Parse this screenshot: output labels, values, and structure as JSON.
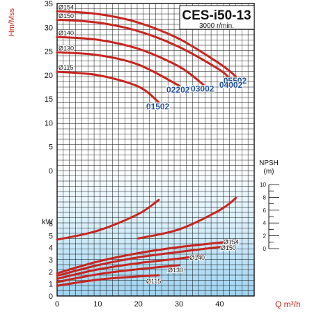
{
  "chart_data": {
    "type": "line",
    "title": "CES-i50-13",
    "subtitle": "3000 r/min.",
    "xlabel": "Q m³/h",
    "x_ticks": [
      0,
      10,
      20,
      30,
      40
    ],
    "head": {
      "ylabel": "Hm/Mss",
      "y_ticks": [
        35,
        30,
        25,
        20,
        15,
        10,
        5,
        0
      ],
      "ylim": [
        0,
        35
      ],
      "impeller_labels": [
        "Ø154",
        "Ø150",
        "Ø140",
        "Ø130",
        "Ø115"
      ],
      "series": [
        {
          "name": "05502",
          "x": [
            0,
            10,
            20,
            30,
            40,
            44
          ],
          "y": [
            33.4,
            32.8,
            31.0,
            27.6,
            22.4,
            19.7
          ]
        },
        {
          "name": "04002",
          "x": [
            0,
            10,
            20,
            30,
            40,
            43
          ],
          "y": [
            31.6,
            31.0,
            29.2,
            25.9,
            21.1,
            18.8
          ]
        },
        {
          "name": "03002",
          "x": [
            0,
            10,
            20,
            30,
            36
          ],
          "y": [
            28.0,
            27.4,
            25.5,
            21.8,
            18.0
          ]
        },
        {
          "name": "02202",
          "x": [
            0,
            10,
            20,
            30
          ],
          "y": [
            24.8,
            24.2,
            22.2,
            17.8
          ]
        },
        {
          "name": "01502",
          "x": [
            0,
            10,
            20,
            25
          ],
          "y": [
            20.7,
            20.0,
            17.6,
            14.3
          ]
        }
      ]
    },
    "npsh": {
      "label": "NPSH",
      "unit": "(m)",
      "ticks": [
        10,
        8,
        6,
        4,
        2,
        0
      ],
      "series": [
        {
          "x": [
            0,
            10,
            20,
            25
          ],
          "y": [
            1.4,
            2.8,
            5.4,
            7.6
          ]
        },
        {
          "x": [
            20,
            30,
            40,
            44
          ],
          "y": [
            1.6,
            3.0,
            6.0,
            7.9
          ]
        }
      ]
    },
    "power": {
      "ylabel": "kW",
      "y_ticks": [
        6,
        5,
        4,
        3,
        2,
        1,
        0
      ],
      "ylim": [
        0,
        6
      ],
      "series": [
        {
          "name": "Ø154",
          "x": [
            0,
            10,
            20,
            30,
            40,
            44
          ],
          "y": [
            1.88,
            2.85,
            3.55,
            4.05,
            4.42,
            4.58
          ]
        },
        {
          "name": "Ø150",
          "x": [
            0,
            10,
            20,
            30,
            40,
            43
          ],
          "y": [
            1.68,
            2.55,
            3.2,
            3.65,
            4.05,
            4.15
          ]
        },
        {
          "name": "Ø140",
          "x": [
            0,
            10,
            20,
            30,
            36
          ],
          "y": [
            1.42,
            2.2,
            2.72,
            3.1,
            3.35
          ]
        },
        {
          "name": "Ø130",
          "x": [
            0,
            10,
            20,
            30
          ],
          "y": [
            1.15,
            1.8,
            2.22,
            2.55
          ]
        },
        {
          "name": "Ø115",
          "x": [
            0,
            10,
            20,
            25
          ],
          "y": [
            0.85,
            1.35,
            1.62,
            1.72
          ]
        }
      ]
    },
    "colors": {
      "curve": "#c8251e",
      "label": "#1f4e9c",
      "grid": "#111111",
      "background": "#ffffff",
      "shade": "#bfe3f6"
    }
  }
}
